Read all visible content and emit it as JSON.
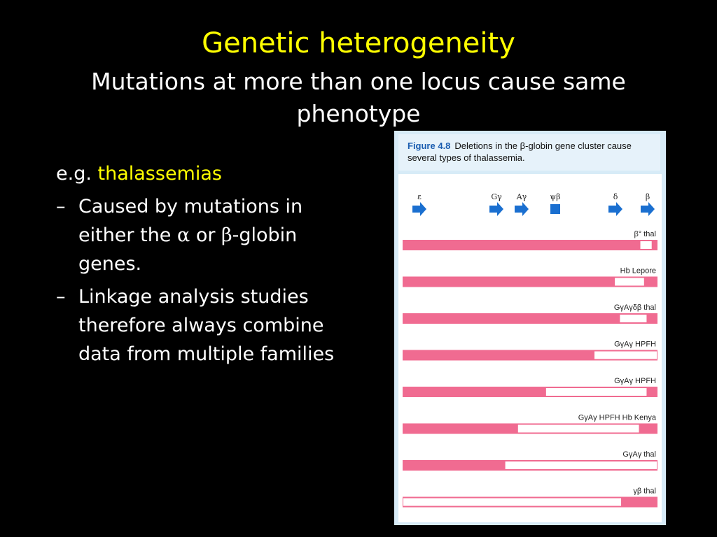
{
  "slide": {
    "title": "Genetic heterogeneity",
    "subtitle": "Mutations at more than one locus cause same phenotype",
    "eg_prefix": "e.g.",
    "eg_highlight": "thalassemias",
    "bullet1": {
      "dash": "–",
      "part1": "Caused by mutations in either the ",
      "alpha": "α",
      "part2": " or ",
      "beta": "β",
      "part3": "-globin genes."
    },
    "bullet2": {
      "dash": "–",
      "text": "Linkage analysis studies therefore always combine data from multiple families"
    }
  },
  "figure": {
    "label": "Figure 4.8",
    "caption": "Deletions in the β-globin gene cluster cause several types of thalassemia.",
    "genes": [
      "ε",
      "Gγ",
      "Aγ",
      "ψβ",
      "δ",
      "β"
    ],
    "deletions": [
      {
        "label": "β° thal",
        "deleted_span": [
          0.93,
          0.98
        ]
      },
      {
        "label": "Hb Lepore",
        "deleted_span": [
          0.83,
          0.95
        ]
      },
      {
        "label": "GγAγδβ thal",
        "deleted_span": [
          0.85,
          0.96
        ]
      },
      {
        "label": "GγAγ HPFH",
        "deleted_span": [
          0.75,
          1.0
        ]
      },
      {
        "label": "GγAγ HPFH",
        "deleted_span": [
          0.56,
          0.96
        ]
      },
      {
        "label": "GγAγ HPFH Hb Kenya",
        "deleted_span": [
          0.45,
          0.93
        ]
      },
      {
        "label": "GγAγ thal",
        "deleted_span": [
          0.4,
          1.0
        ]
      },
      {
        "label": "γβ thal",
        "deleted_span": [
          0.0,
          0.86
        ]
      }
    ],
    "colors": {
      "chromosome": "#f06b91",
      "gene_arrow": "#1a6fd0",
      "panel_bg": "#ffffff",
      "figure_bg": "#d7ebf7"
    }
  }
}
